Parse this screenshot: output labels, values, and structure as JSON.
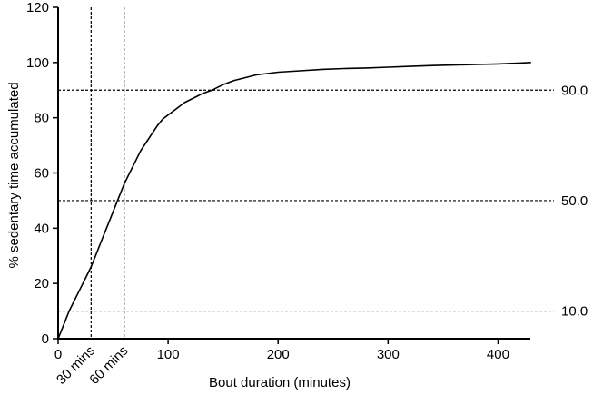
{
  "chart_data": {
    "type": "line",
    "title": "",
    "xlabel": "Bout duration (minutes)",
    "ylabel": "% sedentary time accumulated",
    "xlim": [
      0,
      450
    ],
    "ylim": [
      0,
      120
    ],
    "x_ticks": [
      0,
      100,
      200,
      300,
      400
    ],
    "y_ticks": [
      0,
      20,
      40,
      60,
      80,
      100,
      120
    ],
    "grid": false,
    "legend": "none",
    "series": [
      {
        "x": [
          0,
          5,
          10,
          15,
          20,
          25,
          30,
          35,
          40,
          45,
          50,
          55,
          60,
          65,
          70,
          75,
          80,
          85,
          90,
          95,
          100,
          105,
          110,
          115,
          120,
          125,
          130,
          135,
          140,
          145,
          150,
          160,
          170,
          180,
          190,
          200,
          220,
          240,
          260,
          280,
          300,
          320,
          340,
          360,
          380,
          400,
          420,
          430
        ],
        "y": [
          0,
          5,
          10,
          14,
          18,
          22,
          26,
          31,
          36,
          41,
          46,
          51,
          56,
          60,
          64,
          68,
          71,
          74,
          77,
          79.5,
          81,
          82.5,
          84,
          85.5,
          86.5,
          87.5,
          88.5,
          89.3,
          90,
          91,
          92,
          93.5,
          94.5,
          95.5,
          96,
          96.5,
          97,
          97.5,
          97.8,
          98,
          98.3,
          98.6,
          98.9,
          99.1,
          99.3,
          99.5,
          99.8,
          100
        ]
      }
    ],
    "reference_lines": {
      "horizontal": [
        {
          "y": 90,
          "label": "90.0"
        },
        {
          "y": 50,
          "label": "50.0"
        },
        {
          "y": 10,
          "label": "10.0"
        }
      ],
      "vertical": [
        {
          "x": 30,
          "label": "30 mins"
        },
        {
          "x": 60,
          "label": "60 mins"
        }
      ]
    }
  }
}
